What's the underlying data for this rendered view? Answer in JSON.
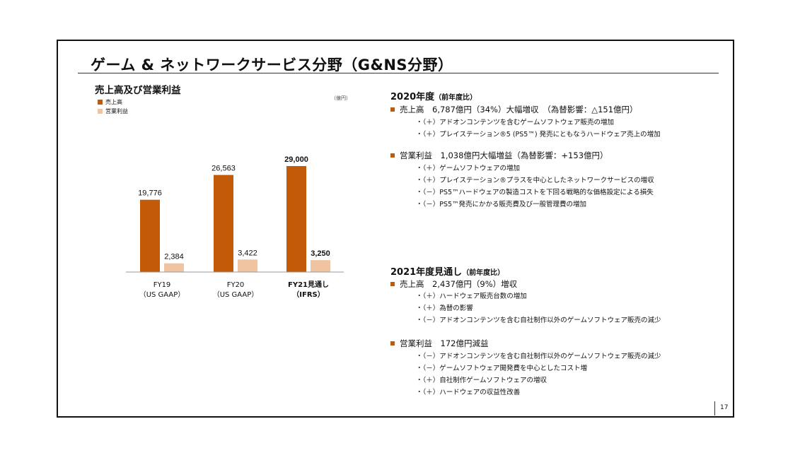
{
  "title": "ゲーム & ネットワークサービス分野（G&NS分野）",
  "chart_block": {
    "heading": "売上高及び営業利益",
    "unit": "（億円）",
    "legend": [
      {
        "label": "売上高",
        "color": "#c25a07"
      },
      {
        "label": "営業利益",
        "color": "#f0c4a0"
      }
    ]
  },
  "chart_data": {
    "type": "bar",
    "title": "売上高及び営業利益",
    "categories": [
      {
        "line1": "FY19",
        "line2": "（US GAAP）",
        "bold": false
      },
      {
        "line1": "FY20",
        "line2": "（US GAAP）",
        "bold": false
      },
      {
        "line1": "FY21見通し",
        "line2": "（IFRS）",
        "bold": true
      }
    ],
    "series": [
      {
        "name": "売上高",
        "color": "#c25a07",
        "values": [
          19776,
          26563,
          29000
        ],
        "labels": [
          "19,776",
          "26,563",
          "29,000"
        ]
      },
      {
        "name": "営業利益",
        "color": "#f0c4a0",
        "values": [
          2384,
          3422,
          3250
        ],
        "labels": [
          "2,384",
          "3,422",
          "3,250"
        ]
      }
    ],
    "ylim": [
      0,
      29000
    ],
    "grid": false,
    "legend_position": "top-left"
  },
  "fy2020": {
    "heading": "2020年度",
    "heading_note": "（前年度比）",
    "sales": {
      "text": "売上高　6,787億円（34%）大幅増収　（為替影響：△151億円）",
      "items": [
        "・（＋）アドオンコンテンツを含むゲームソフトウェア販売の増加",
        "・（＋）プレイステーション®5 (PS5™) 発売にともなうハードウェア売上の増加"
      ]
    },
    "profit": {
      "text": "営業利益　1,038億円大幅増益（為替影響：+153億円）",
      "items": [
        "・（＋）ゲームソフトウェアの増加",
        "・（＋）プレイステーション®プラスを中心としたネットワークサービスの増収",
        "・（－）PS5™ハードウェアの製造コストを下回る戦略的な価格設定による損失",
        "・（－）PS5™発売にかかる販売費及び一般管理費の増加"
      ]
    }
  },
  "fy2021": {
    "heading": "2021年度見通し",
    "heading_note": "（前年度比）",
    "sales": {
      "text": "売上高　2,437億円（9%）増収",
      "items": [
        "・（＋）ハードウェア販売台数の増加",
        "・（＋）為替の影響",
        "・（－）アドオンコンテンツを含む自社制作以外のゲームソフトウェア販売の減少"
      ]
    },
    "profit": {
      "text": "営業利益　172億円減益",
      "items": [
        "・（－）アドオンコンテンツを含む自社制作以外のゲームソフトウェア販売の減少",
        "・（－）ゲームソフトウェア開発費を中心としたコスト増",
        "・（＋）自社制作ゲームソフトウェアの増収",
        "・（＋）ハードウェアの収益性改善"
      ]
    }
  },
  "page_number": "17"
}
